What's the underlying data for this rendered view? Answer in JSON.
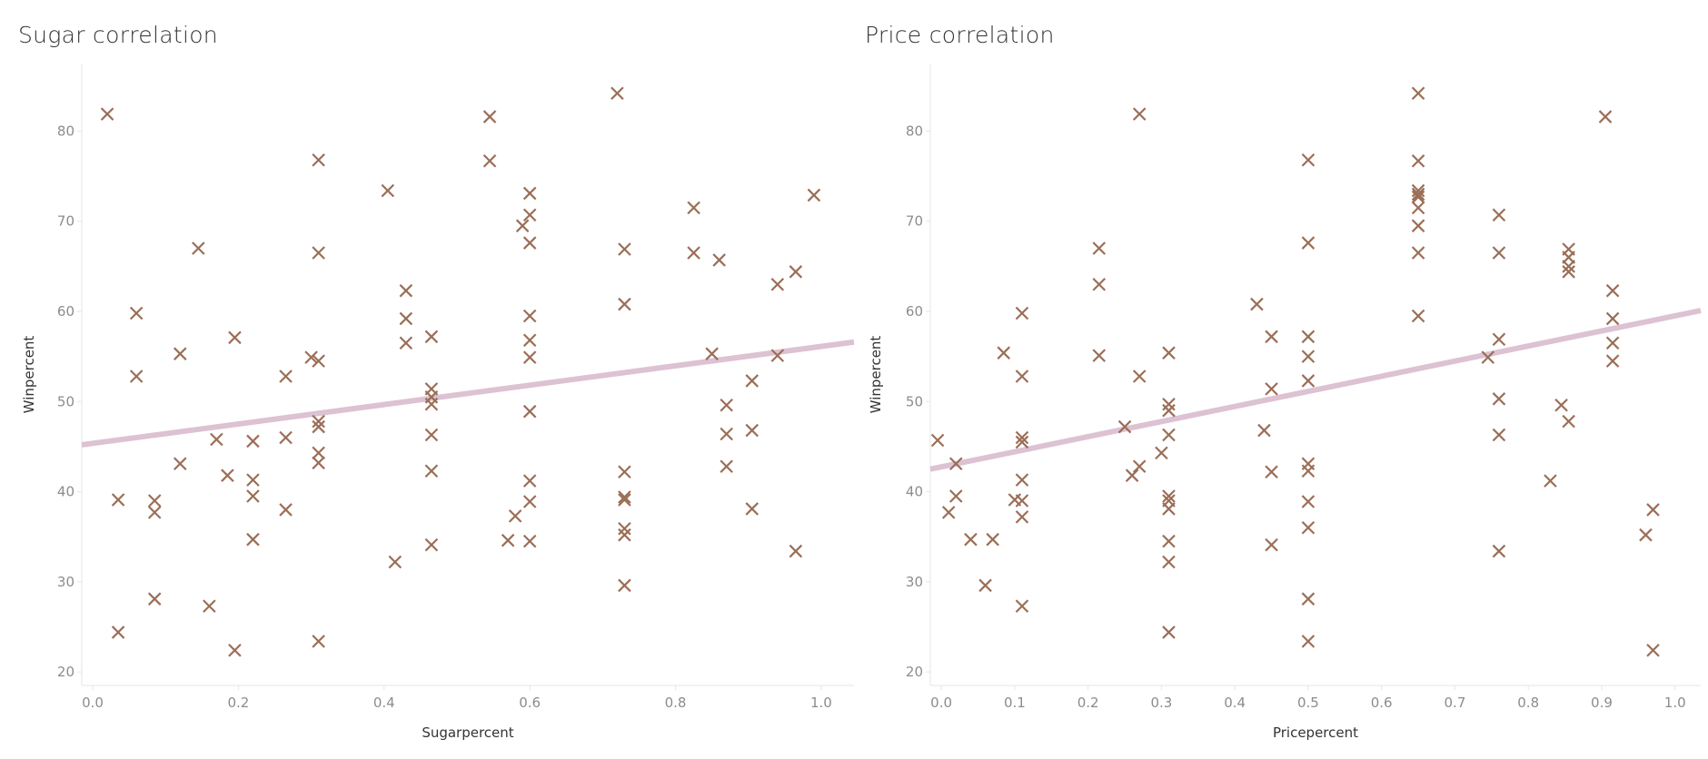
{
  "colors": {
    "marker": "#9b6e57",
    "trend": "#dcc2d2",
    "axis": "#e6e6e6",
    "tick_text": "#8c8c8c",
    "title_text": "#333333"
  },
  "chart_data": [
    {
      "type": "scatter",
      "title": "Sugar correlation",
      "xlabel": "Sugarpercent",
      "ylabel": "Winpercent",
      "xlim": [
        -0.015,
        1.045
      ],
      "ylim": [
        18.5,
        87.5
      ],
      "xticks": [
        "0.0",
        "0.2",
        "0.4",
        "0.6",
        "0.8",
        "1.0"
      ],
      "yticks": [
        "20",
        "30",
        "40",
        "50",
        "60",
        "70",
        "80"
      ],
      "marker": "x",
      "grid": false,
      "trendline": {
        "x": [
          -0.015,
          1.045
        ],
        "y": [
          45.2,
          56.6
        ]
      },
      "points": [
        [
          0.02,
          81.9
        ],
        [
          0.035,
          24.4
        ],
        [
          0.035,
          39.1
        ],
        [
          0.06,
          59.8
        ],
        [
          0.06,
          52.8
        ],
        [
          0.085,
          39
        ],
        [
          0.085,
          37.7
        ],
        [
          0.085,
          28.1
        ],
        [
          0.12,
          55.3
        ],
        [
          0.12,
          43.1
        ],
        [
          0.145,
          67
        ],
        [
          0.16,
          27.3
        ],
        [
          0.17,
          45.8
        ],
        [
          0.185,
          41.8
        ],
        [
          0.195,
          57.1
        ],
        [
          0.195,
          22.4
        ],
        [
          0.22,
          45.6
        ],
        [
          0.22,
          41.3
        ],
        [
          0.22,
          39.5
        ],
        [
          0.22,
          34.7
        ],
        [
          0.265,
          52.8
        ],
        [
          0.265,
          46
        ],
        [
          0.265,
          38
        ],
        [
          0.3,
          54.9
        ],
        [
          0.31,
          76.8
        ],
        [
          0.31,
          66.5
        ],
        [
          0.31,
          54.5
        ],
        [
          0.31,
          47.8
        ],
        [
          0.31,
          47.2
        ],
        [
          0.31,
          44.3
        ],
        [
          0.31,
          43.2
        ],
        [
          0.31,
          23.4
        ],
        [
          0.405,
          73.4
        ],
        [
          0.415,
          32.2
        ],
        [
          0.43,
          62.3
        ],
        [
          0.43,
          59.2
        ],
        [
          0.43,
          56.5
        ],
        [
          0.465,
          57.2
        ],
        [
          0.465,
          51.4
        ],
        [
          0.465,
          50.5
        ],
        [
          0.465,
          49.7
        ],
        [
          0.465,
          46.3
        ],
        [
          0.465,
          42.3
        ],
        [
          0.465,
          34.1
        ],
        [
          0.545,
          81.6
        ],
        [
          0.545,
          76.7
        ],
        [
          0.57,
          34.6
        ],
        [
          0.58,
          37.3
        ],
        [
          0.59,
          69.5
        ],
        [
          0.6,
          73.1
        ],
        [
          0.6,
          70.7
        ],
        [
          0.6,
          67.6
        ],
        [
          0.6,
          59.5
        ],
        [
          0.6,
          56.8
        ],
        [
          0.6,
          54.9
        ],
        [
          0.6,
          48.9
        ],
        [
          0.6,
          41.2
        ],
        [
          0.6,
          38.9
        ],
        [
          0.6,
          34.5
        ],
        [
          0.72,
          84.2
        ],
        [
          0.73,
          66.9
        ],
        [
          0.73,
          60.8
        ],
        [
          0.73,
          42.2
        ],
        [
          0.73,
          39.4
        ],
        [
          0.73,
          39.1
        ],
        [
          0.73,
          35.9
        ],
        [
          0.73,
          35.2
        ],
        [
          0.73,
          29.6
        ],
        [
          0.825,
          71.5
        ],
        [
          0.825,
          66.5
        ],
        [
          0.85,
          55.3
        ],
        [
          0.86,
          65.7
        ],
        [
          0.87,
          49.6
        ],
        [
          0.87,
          46.4
        ],
        [
          0.87,
          42.8
        ],
        [
          0.905,
          52.3
        ],
        [
          0.905,
          46.8
        ],
        [
          0.905,
          38.1
        ],
        [
          0.94,
          63
        ],
        [
          0.94,
          55.1
        ],
        [
          0.965,
          64.4
        ],
        [
          0.965,
          33.4
        ],
        [
          0.99,
          72.9
        ]
      ]
    },
    {
      "type": "scatter",
      "title": "Price correlation",
      "xlabel": "Pricepercent",
      "ylabel": "Winpercent",
      "xlim": [
        -0.015,
        1.035
      ],
      "ylim": [
        18.5,
        87.5
      ],
      "xticks": [
        "0.0",
        "0.1",
        "0.2",
        "0.3",
        "0.4",
        "0.5",
        "0.6",
        "0.7",
        "0.8",
        "0.9",
        "1.0"
      ],
      "yticks": [
        "20",
        "30",
        "40",
        "50",
        "60",
        "70",
        "80"
      ],
      "marker": "x",
      "grid": false,
      "trendline": {
        "x": [
          -0.015,
          1.035
        ],
        "y": [
          42.5,
          60.1
        ]
      },
      "points": [
        [
          -0.005,
          45.7
        ],
        [
          0.01,
          37.7
        ],
        [
          0.02,
          43.1
        ],
        [
          0.02,
          39.5
        ],
        [
          0.04,
          34.7
        ],
        [
          0.06,
          29.6
        ],
        [
          0.07,
          34.7
        ],
        [
          0.085,
          55.4
        ],
        [
          0.1,
          39.1
        ],
        [
          0.11,
          59.8
        ],
        [
          0.11,
          52.8
        ],
        [
          0.11,
          46
        ],
        [
          0.11,
          45.5
        ],
        [
          0.11,
          41.3
        ],
        [
          0.11,
          39
        ],
        [
          0.11,
          37.2
        ],
        [
          0.11,
          27.3
        ],
        [
          0.215,
          67
        ],
        [
          0.215,
          63
        ],
        [
          0.215,
          55.1
        ],
        [
          0.25,
          47.2
        ],
        [
          0.26,
          41.8
        ],
        [
          0.27,
          52.8
        ],
        [
          0.27,
          42.8
        ],
        [
          0.27,
          81.9
        ],
        [
          0.3,
          44.3
        ],
        [
          0.31,
          55.4
        ],
        [
          0.31,
          49.7
        ],
        [
          0.31,
          49
        ],
        [
          0.31,
          46.3
        ],
        [
          0.31,
          39.5
        ],
        [
          0.31,
          39
        ],
        [
          0.31,
          38.1
        ],
        [
          0.31,
          34.5
        ],
        [
          0.31,
          32.2
        ],
        [
          0.31,
          24.4
        ],
        [
          0.43,
          60.8
        ],
        [
          0.44,
          46.8
        ],
        [
          0.45,
          57.2
        ],
        [
          0.45,
          51.4
        ],
        [
          0.45,
          42.2
        ],
        [
          0.45,
          34.1
        ],
        [
          0.5,
          76.8
        ],
        [
          0.5,
          67.6
        ],
        [
          0.5,
          57.2
        ],
        [
          0.5,
          55
        ],
        [
          0.5,
          52.3
        ],
        [
          0.5,
          43.1
        ],
        [
          0.5,
          42.3
        ],
        [
          0.5,
          38.9
        ],
        [
          0.5,
          36
        ],
        [
          0.5,
          28.1
        ],
        [
          0.5,
          23.4
        ],
        [
          0.65,
          84.2
        ],
        [
          0.65,
          76.7
        ],
        [
          0.65,
          73.4
        ],
        [
          0.65,
          73
        ],
        [
          0.65,
          72.7
        ],
        [
          0.65,
          71.5
        ],
        [
          0.65,
          69.5
        ],
        [
          0.65,
          66.5
        ],
        [
          0.65,
          59.5
        ],
        [
          0.745,
          54.9
        ],
        [
          0.76,
          70.7
        ],
        [
          0.76,
          66.5
        ],
        [
          0.76,
          56.9
        ],
        [
          0.76,
          50.3
        ],
        [
          0.76,
          46.3
        ],
        [
          0.76,
          33.4
        ],
        [
          0.83,
          41.2
        ],
        [
          0.845,
          49.6
        ],
        [
          0.855,
          66.9
        ],
        [
          0.855,
          66
        ],
        [
          0.855,
          65
        ],
        [
          0.855,
          64.4
        ],
        [
          0.855,
          47.8
        ],
        [
          0.905,
          81.6
        ],
        [
          0.915,
          62.3
        ],
        [
          0.915,
          59.2
        ],
        [
          0.915,
          56.5
        ],
        [
          0.915,
          54.5
        ],
        [
          0.96,
          35.2
        ],
        [
          0.97,
          38
        ],
        [
          0.97,
          22.4
        ]
      ]
    }
  ]
}
